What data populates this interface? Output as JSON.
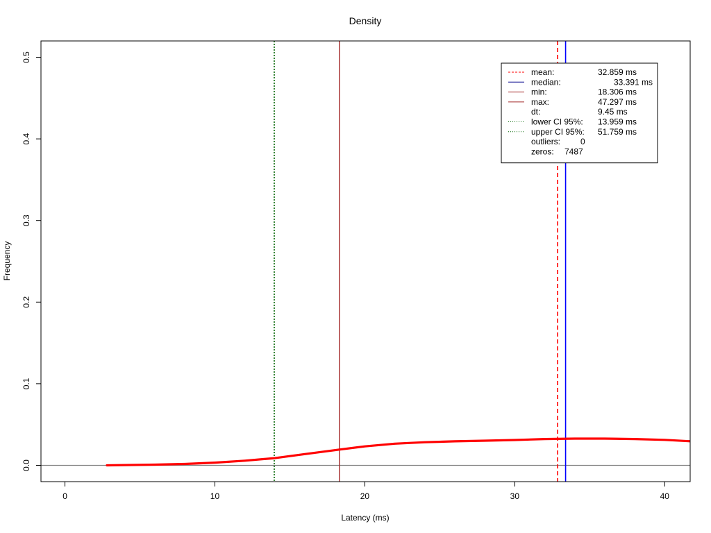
{
  "chart_data": {
    "type": "line",
    "title": "Density",
    "xlabel": "Latency (ms)",
    "ylabel": "Frequency",
    "xlim": [
      -1.6,
      41.7
    ],
    "ylim": [
      -0.02,
      0.52
    ],
    "x_ticks": [
      0,
      10,
      20,
      30,
      40
    ],
    "x_tick_labels": [
      "0",
      "10",
      "20",
      "30",
      "40"
    ],
    "y_ticks": [
      0.0,
      0.1,
      0.2,
      0.3,
      0.4,
      0.5
    ],
    "y_tick_labels": [
      "0.0",
      "0.1",
      "0.2",
      "0.3",
      "0.4",
      "0.5"
    ],
    "grid": false,
    "baseline_y": 0,
    "density_color": "#ff0000",
    "density": {
      "x": [
        2.8,
        4,
        6,
        8,
        10,
        12,
        14,
        16,
        18.3,
        20,
        22,
        24,
        26,
        28,
        30,
        32,
        34,
        36,
        38,
        40,
        41.7
      ],
      "y": [
        0.0,
        0.0003,
        0.0008,
        0.0017,
        0.0033,
        0.0057,
        0.0088,
        0.0138,
        0.0193,
        0.0232,
        0.0265,
        0.0283,
        0.0294,
        0.0302,
        0.031,
        0.0322,
        0.0327,
        0.0327,
        0.0322,
        0.0312,
        0.0295
      ]
    },
    "vlines": [
      {
        "x": 13.959,
        "color": "#006400",
        "dash": "2,2",
        "width": 1.6
      },
      {
        "x": 18.306,
        "color": "#a52a2a",
        "dash": "",
        "width": 1.4
      },
      {
        "x": 32.859,
        "color": "#ff0000",
        "dash": "6,4",
        "width": 1.6
      },
      {
        "x": 33.391,
        "color": "#0000ff",
        "dash": "",
        "width": 1.6
      }
    ],
    "legend_position": "top-right",
    "legend": [
      {
        "label": "mean:",
        "value": "32.859 ms",
        "color": "#ff0000",
        "dash": "3,2",
        "line": true
      },
      {
        "label": "median:",
        "value": "33.391 ms",
        "color": "#00008b",
        "dash": "",
        "line": true
      },
      {
        "label": "min:",
        "value": "18.306 ms",
        "color": "#a52a2a",
        "dash": "",
        "line": true
      },
      {
        "label": "max:",
        "value": "47.297 ms",
        "color": "#a52a2a",
        "dash": "",
        "line": true
      },
      {
        "label": "dt:",
        "value": "9.45 ms",
        "color": "",
        "dash": "",
        "line": false
      },
      {
        "label": "lower CI 95%:",
        "value": "13.959 ms",
        "color": "#006400",
        "dash": "1,2",
        "line": true
      },
      {
        "label": "upper CI 95%:",
        "value": "51.759 ms",
        "color": "#006400",
        "dash": "1,2",
        "line": true
      },
      {
        "label": "outliers:",
        "value": "0",
        "color": "",
        "dash": "",
        "line": false
      },
      {
        "label": "zeros:",
        "value": "7487",
        "color": "",
        "dash": "",
        "line": false
      }
    ]
  }
}
